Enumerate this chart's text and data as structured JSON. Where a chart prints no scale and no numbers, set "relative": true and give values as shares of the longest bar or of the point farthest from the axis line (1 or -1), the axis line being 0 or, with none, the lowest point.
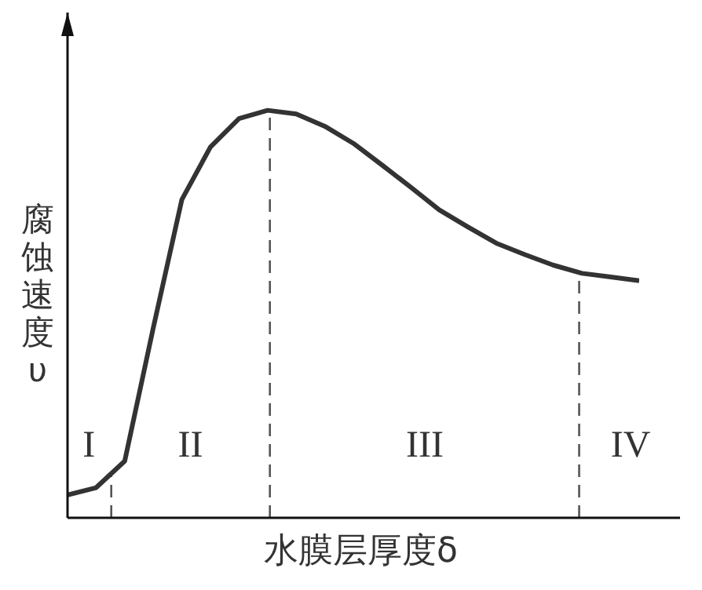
{
  "chart_data": {
    "type": "line",
    "relative": true,
    "xlabel": "水膜层厚度δ",
    "ylabel": "腐蚀速度υ",
    "marker": "none",
    "line_style": "solid",
    "categories": [
      null,
      null,
      null,
      null,
      null,
      null,
      null,
      null,
      null,
      null,
      null,
      null,
      null,
      null,
      null,
      null,
      null,
      null,
      null,
      null,
      null
    ],
    "series": [
      {
        "color": "#333333",
        "values": [
          0.056,
          0.074,
          0.139,
          0.466,
          0.781,
          0.91,
          0.98,
          1,
          0.991,
          0.961,
          0.919,
          0.866,
          0.812,
          0.756,
          0.714,
          0.674,
          0.646,
          0.62,
          0.6,
          0.591,
          0.582
        ]
      }
    ],
    "annotations": [
      "I",
      "II",
      "III",
      "IV"
    ]
  }
}
